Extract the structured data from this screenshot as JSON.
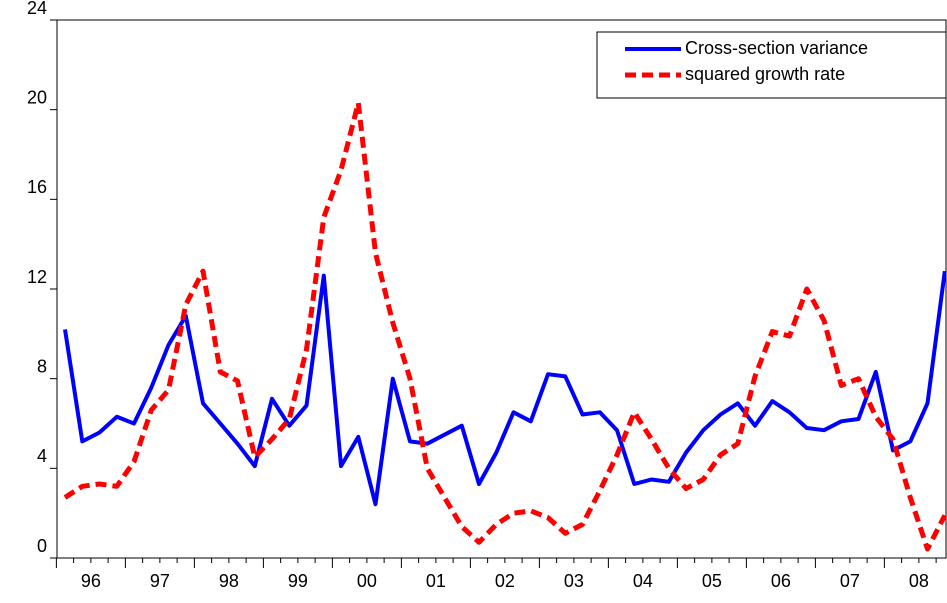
{
  "chart_data": {
    "type": "line",
    "categories": [
      "96",
      null,
      null,
      null,
      "97",
      null,
      null,
      null,
      "98",
      null,
      null,
      null,
      "99",
      null,
      null,
      null,
      "00",
      null,
      null,
      null,
      "01",
      null,
      null,
      null,
      "02",
      null,
      null,
      null,
      "03",
      null,
      null,
      null,
      "04",
      null,
      null,
      null,
      "05",
      null,
      null,
      null,
      "06",
      null,
      null,
      null,
      "07",
      null,
      null,
      null,
      "08",
      null,
      null,
      null
    ],
    "series": [
      {
        "name": "Cross-section variance",
        "color": "#0000ff",
        "style": "solid",
        "values": [
          10.2,
          5.2,
          5.6,
          6.3,
          6.0,
          7.6,
          9.5,
          10.8,
          6.9,
          6.0,
          5.1,
          4.1,
          7.1,
          5.9,
          6.8,
          12.6,
          4.1,
          5.4,
          2.4,
          8.0,
          5.2,
          5.1,
          5.5,
          5.9,
          3.3,
          4.7,
          6.5,
          6.1,
          8.2,
          8.1,
          6.4,
          6.5,
          5.7,
          3.3,
          3.5,
          3.4,
          4.7,
          5.7,
          6.4,
          6.9,
          5.9,
          7.0,
          6.5,
          5.8,
          5.7,
          6.1,
          6.2,
          8.3,
          4.8,
          5.2,
          6.9,
          12.8
        ]
      },
      {
        "name": "squared growth rate",
        "color": "#ff0000",
        "style": "dashed",
        "values": [
          2.7,
          3.2,
          3.3,
          3.2,
          4.3,
          6.6,
          7.5,
          11.3,
          12.8,
          8.3,
          7.9,
          4.5,
          5.3,
          6.2,
          9.3,
          15.2,
          17.3,
          20.3,
          13.6,
          10.5,
          8.0,
          4.0,
          2.7,
          1.4,
          0.7,
          1.5,
          2.0,
          2.1,
          1.8,
          1.1,
          1.5,
          3.0,
          4.6,
          6.5,
          5.3,
          4.0,
          3.1,
          3.5,
          4.6,
          5.1,
          8.1,
          10.1,
          9.9,
          12.0,
          10.6,
          7.7,
          8.0,
          6.3,
          5.3,
          2.7,
          0.4,
          1.9
        ]
      }
    ],
    "ylim": [
      0,
      24
    ],
    "yticks": [
      0,
      4,
      8,
      12,
      16,
      20,
      24
    ],
    "grid": false,
    "legend": "upper right"
  }
}
